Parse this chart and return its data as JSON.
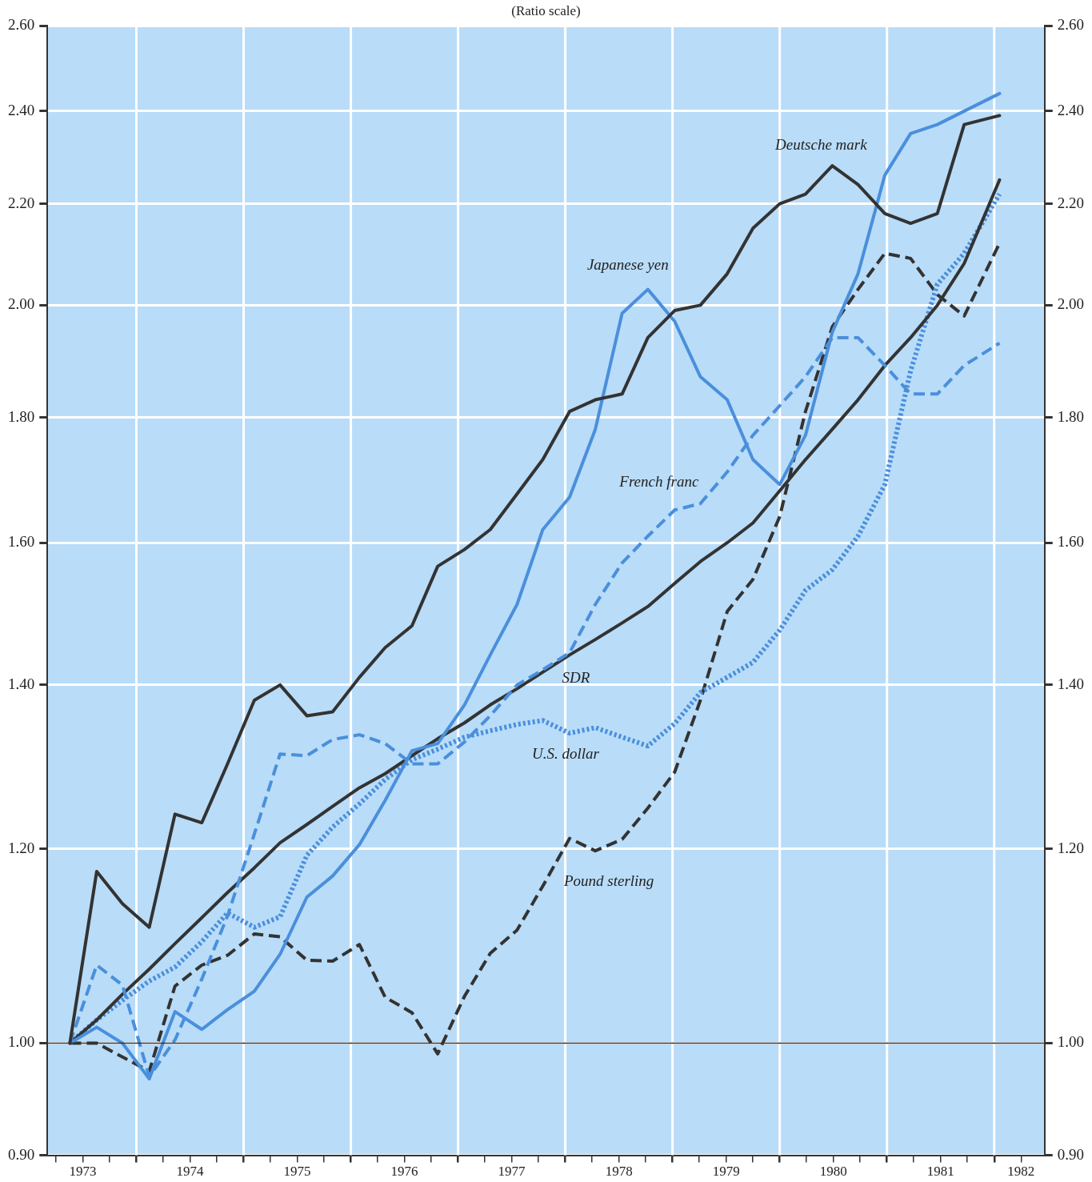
{
  "chart_data": {
    "type": "line",
    "subtitle": "(Ratio scale)",
    "x": [
      1973.38,
      1973.63,
      1973.87,
      1974.12,
      1974.36,
      1974.61,
      1974.85,
      1975.1,
      1975.34,
      1975.59,
      1975.83,
      1976.08,
      1976.32,
      1976.57,
      1976.81,
      1977.06,
      1977.3,
      1977.55,
      1977.79,
      1978.04,
      1978.28,
      1978.53,
      1978.77,
      1979.02,
      1979.26,
      1979.51,
      1979.75,
      1980.0,
      1980.24,
      1980.49,
      1980.73,
      1980.98,
      1981.22,
      1981.47,
      1981.72,
      1982.05
    ],
    "series": [
      {
        "name": "Deutsche mark",
        "color": "#333333",
        "line_style": "solid",
        "values": [
          1.0,
          1.175,
          1.14,
          1.115,
          1.24,
          1.23,
          1.3,
          1.38,
          1.4,
          1.36,
          1.365,
          1.41,
          1.45,
          1.48,
          1.565,
          1.59,
          1.62,
          1.675,
          1.73,
          1.81,
          1.83,
          1.84,
          1.94,
          1.99,
          2.0,
          2.06,
          2.15,
          2.2,
          2.22,
          2.28,
          2.24,
          2.18,
          2.16,
          2.18,
          2.37,
          2.39
        ]
      },
      {
        "name": "Japanese yen",
        "color": "#4a8fdc",
        "line_style": "solid",
        "values": [
          1.0,
          1.015,
          1.0,
          0.967,
          1.03,
          1.013,
          1.032,
          1.05,
          1.087,
          1.147,
          1.17,
          1.205,
          1.256,
          1.316,
          1.325,
          1.374,
          1.44,
          1.51,
          1.62,
          1.67,
          1.78,
          1.985,
          2.03,
          1.97,
          1.87,
          1.83,
          1.73,
          1.69,
          1.77,
          1.95,
          2.06,
          2.26,
          2.35,
          2.37,
          2.4,
          2.44
        ]
      },
      {
        "name": "French franc",
        "color": "#4a8fdc",
        "line_style": "dashed",
        "values": [
          1.0,
          1.076,
          1.056,
          0.969,
          1.003,
          1.062,
          1.127,
          1.217,
          1.312,
          1.31,
          1.33,
          1.336,
          1.325,
          1.3,
          1.3,
          1.327,
          1.36,
          1.4,
          1.42,
          1.443,
          1.51,
          1.57,
          1.61,
          1.65,
          1.66,
          1.71,
          1.77,
          1.82,
          1.87,
          1.94,
          1.94,
          1.89,
          1.84,
          1.84,
          1.89,
          1.93
        ]
      },
      {
        "name": "SDR",
        "color": "#333333",
        "line_style": "solid",
        "values": [
          1.0,
          1.022,
          1.047,
          1.072,
          1.098,
          1.125,
          1.152,
          1.179,
          1.207,
          1.228,
          1.249,
          1.271,
          1.288,
          1.31,
          1.331,
          1.351,
          1.374,
          1.395,
          1.417,
          1.44,
          1.461,
          1.484,
          1.507,
          1.54,
          1.572,
          1.6,
          1.63,
          1.68,
          1.73,
          1.78,
          1.83,
          1.89,
          1.94,
          2.0,
          2.08,
          2.25
        ]
      },
      {
        "name": "U.S. dollar",
        "color": "#4a8fdc",
        "line_style": "dotted",
        "values": [
          1.0,
          1.022,
          1.041,
          1.06,
          1.074,
          1.1,
          1.13,
          1.115,
          1.126,
          1.193,
          1.225,
          1.252,
          1.281,
          1.305,
          1.318,
          1.333,
          1.341,
          1.349,
          1.354,
          1.338,
          1.345,
          1.333,
          1.322,
          1.35,
          1.39,
          1.41,
          1.43,
          1.474,
          1.53,
          1.56,
          1.61,
          1.69,
          1.88,
          2.04,
          2.1,
          2.22
        ]
      },
      {
        "name": "Pound sterling",
        "color": "#333333",
        "line_style": "dashed",
        "values": [
          1.0,
          1.0,
          0.987,
          0.974,
          1.055,
          1.076,
          1.086,
          1.108,
          1.105,
          1.081,
          1.08,
          1.097,
          1.044,
          1.029,
          0.99,
          1.045,
          1.088,
          1.112,
          1.159,
          1.212,
          1.198,
          1.211,
          1.247,
          1.29,
          1.38,
          1.5,
          1.546,
          1.64,
          1.81,
          1.96,
          2.03,
          2.1,
          2.09,
          2.02,
          1.98,
          2.12
        ]
      }
    ],
    "xlim": [
      1973.17,
      1982.47
    ],
    "xticks": [
      {
        "value": 1973.25,
        "label": null
      },
      {
        "value": 1973.5,
        "label": "1973"
      },
      {
        "value": 1973.75,
        "label": null
      },
      {
        "value": 1974,
        "label": null
      },
      {
        "value": 1974.25,
        "label": null
      },
      {
        "value": 1974.5,
        "label": "1974"
      },
      {
        "value": 1974.75,
        "label": null
      },
      {
        "value": 1975,
        "label": null
      },
      {
        "value": 1975.25,
        "label": null
      },
      {
        "value": 1975.5,
        "label": "1975"
      },
      {
        "value": 1975.75,
        "label": null
      },
      {
        "value": 1976,
        "label": null
      },
      {
        "value": 1976.25,
        "label": null
      },
      {
        "value": 1976.5,
        "label": "1976"
      },
      {
        "value": 1976.75,
        "label": null
      },
      {
        "value": 1977,
        "label": null
      },
      {
        "value": 1977.25,
        "label": null
      },
      {
        "value": 1977.5,
        "label": "1977"
      },
      {
        "value": 1977.75,
        "label": null
      },
      {
        "value": 1978,
        "label": null
      },
      {
        "value": 1978.25,
        "label": null
      },
      {
        "value": 1978.5,
        "label": "1978"
      },
      {
        "value": 1978.75,
        "label": null
      },
      {
        "value": 1979,
        "label": null
      },
      {
        "value": 1979.25,
        "label": null
      },
      {
        "value": 1979.5,
        "label": "1979"
      },
      {
        "value": 1979.75,
        "label": null
      },
      {
        "value": 1980,
        "label": null
      },
      {
        "value": 1980.25,
        "label": null
      },
      {
        "value": 1980.5,
        "label": "1980"
      },
      {
        "value": 1980.75,
        "label": null
      },
      {
        "value": 1981,
        "label": null
      },
      {
        "value": 1981.25,
        "label": null
      },
      {
        "value": 1981.5,
        "label": "1981"
      },
      {
        "value": 1981.75,
        "label": null
      },
      {
        "value": 1982,
        "label": null
      },
      {
        "value": 1982.25,
        "label": "1982"
      }
    ],
    "ylim": [
      0.9,
      2.6
    ],
    "yticks": [
      {
        "value": 0.9,
        "label": "0.90"
      },
      {
        "value": 1,
        "label": "1.00"
      },
      {
        "value": 1.2,
        "label": "1.20"
      },
      {
        "value": 1.4,
        "label": "1.40"
      },
      {
        "value": 1.6,
        "label": "1.60"
      },
      {
        "value": 1.8,
        "label": "1.80"
      },
      {
        "value": 2,
        "label": "2.00"
      },
      {
        "value": 2.2,
        "label": "2.20"
      },
      {
        "value": 2.4,
        "label": "2.40"
      },
      {
        "value": 2.6,
        "label": "2.60"
      }
    ],
    "log": "y",
    "grid": true,
    "legend": false,
    "ref_lines": [
      {
        "axis": "y",
        "value": 1,
        "color": "#333333",
        "line_style": "solid"
      }
    ]
  }
}
